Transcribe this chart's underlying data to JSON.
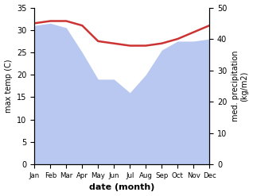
{
  "months": [
    "Jan",
    "Feb",
    "Mar",
    "Apr",
    "May",
    "Jun",
    "Jul",
    "Aug",
    "Sep",
    "Oct",
    "Nov",
    "Dec"
  ],
  "x": [
    0,
    1,
    2,
    3,
    4,
    5,
    6,
    7,
    8,
    9,
    10,
    11
  ],
  "temperature": [
    31.5,
    32.0,
    32.0,
    31.0,
    27.5,
    27.0,
    26.5,
    26.5,
    27.0,
    28.0,
    29.5,
    31.0
  ],
  "precipitation_fill": [
    31.0,
    31.5,
    30.5,
    25.0,
    19.0,
    19.0,
    16.0,
    20.0,
    25.5,
    27.5,
    27.5,
    28.0
  ],
  "temp_color": "#cc3333",
  "precip_color": "#b8c8f0",
  "background_color": "#ffffff",
  "ylabel_left": "max temp (C)",
  "ylabel_right": "med. precipitation\n(kg/m2)",
  "xlabel": "date (month)",
  "ylim_left": [
    0,
    35
  ],
  "ylim_right": [
    0,
    50
  ],
  "yticks_left": [
    0,
    5,
    10,
    15,
    20,
    25,
    30,
    35
  ],
  "yticks_right": [
    0,
    10,
    20,
    30,
    40,
    50
  ],
  "temp_linewidth": 1.8
}
